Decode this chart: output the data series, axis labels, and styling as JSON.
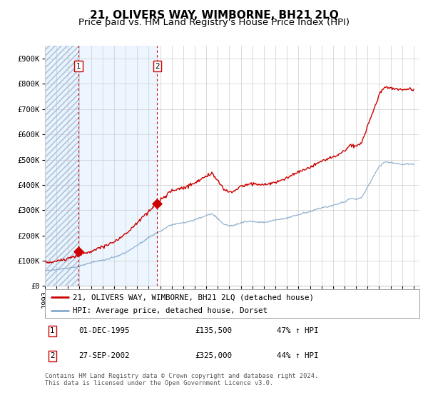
{
  "title": "21, OLIVERS WAY, WIMBORNE, BH21 2LQ",
  "subtitle": "Price paid vs. HM Land Registry's House Price Index (HPI)",
  "legend_line1": "21, OLIVERS WAY, WIMBORNE, BH21 2LQ (detached house)",
  "legend_line2": "HPI: Average price, detached house, Dorset",
  "annotation1_label": "1",
  "annotation1_date": "01-DEC-1995",
  "annotation1_price": "£135,500",
  "annotation1_hpi": "47% ↑ HPI",
  "annotation2_label": "2",
  "annotation2_date": "27-SEP-2002",
  "annotation2_price": "£325,000",
  "annotation2_hpi": "44% ↑ HPI",
  "footer": "Contains HM Land Registry data © Crown copyright and database right 2024.\nThis data is licensed under the Open Government Licence v3.0.",
  "sale1_year": 1995.92,
  "sale1_value": 135500,
  "sale2_year": 2002.75,
  "sale2_value": 325000,
  "ylim": [
    0,
    950000
  ],
  "xlim_start": 1993.0,
  "xlim_end": 2025.5,
  "line_color_red": "#cc0000",
  "line_color_blue": "#88aacc",
  "hatch_color": "#ddeeff",
  "between_color": "#ddeeff",
  "grid_color": "#cccccc",
  "background_color": "#ffffff",
  "title_fontsize": 11,
  "subtitle_fontsize": 9.5,
  "tick_fontsize": 7.5
}
